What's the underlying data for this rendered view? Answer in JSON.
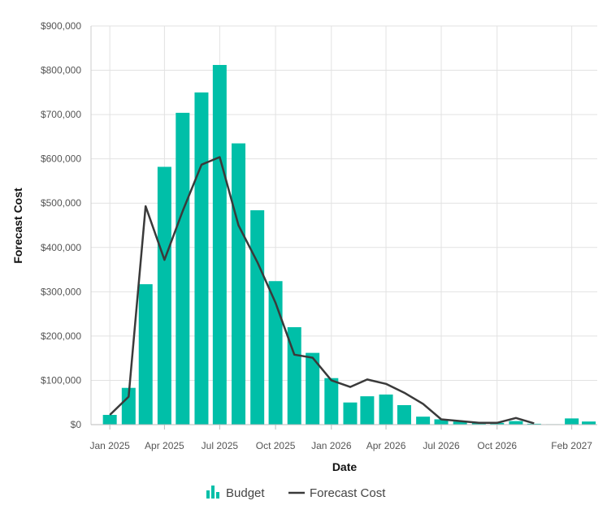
{
  "chart_data": {
    "type": "bar+line",
    "xlabel": "Date",
    "ylabel": "Forecast Cost",
    "ylim": [
      0,
      900000
    ],
    "y_ticks": [
      0,
      100000,
      200000,
      300000,
      400000,
      500000,
      600000,
      700000,
      800000,
      900000
    ],
    "y_tick_labels": [
      "$0",
      "$100,000",
      "$200,000",
      "$300,000",
      "$400,000",
      "$500,000",
      "$600,000",
      "$700,000",
      "$800,000",
      "$900,000"
    ],
    "x_ticks": [
      "2025-01-01",
      "2025-04-01",
      "2025-07-01",
      "2025-10-01",
      "2026-01-01",
      "2026-04-01",
      "2026-07-01",
      "2026-10-01",
      "2027-02-01"
    ],
    "x_tick_labels": [
      "Jan 2025",
      "Apr 2025",
      "Jul 2025",
      "Oct 2025",
      "Jan 2026",
      "Apr 2026",
      "Jul 2026",
      "Oct 2026",
      "Feb 2027"
    ],
    "xlim": [
      "2024-12-01",
      "2027-03-15"
    ],
    "grid": true,
    "legend_position": "bottom",
    "colors": {
      "budget": "#00bfa8",
      "forecast": "#3a3a3a"
    },
    "series": [
      {
        "name": "Budget",
        "type": "bar",
        "x": [
          "2025-01-01",
          "2025-02-01",
          "2025-03-01",
          "2025-04-01",
          "2025-05-01",
          "2025-06-01",
          "2025-07-01",
          "2025-08-01",
          "2025-09-01",
          "2025-10-01",
          "2025-11-01",
          "2025-12-01",
          "2026-01-01",
          "2026-02-01",
          "2026-03-01",
          "2026-04-01",
          "2026-05-01",
          "2026-06-01",
          "2026-07-01",
          "2026-08-01",
          "2026-09-01",
          "2026-10-01",
          "2026-11-01",
          "2026-12-01",
          "2027-01-01",
          "2027-02-01",
          "2027-03-01"
        ],
        "values": [
          22000,
          83000,
          317000,
          582000,
          704000,
          750000,
          812000,
          635000,
          484000,
          324000,
          220000,
          162000,
          105000,
          50000,
          64000,
          68000,
          44000,
          18000,
          12000,
          7000,
          5000,
          4000,
          8000,
          2000,
          1000,
          14000,
          7000
        ]
      },
      {
        "name": "Forecast Cost",
        "type": "line",
        "x": [
          "2025-01-01",
          "2025-02-01",
          "2025-03-01",
          "2025-04-01",
          "2025-05-01",
          "2025-06-01",
          "2025-07-01",
          "2025-08-01",
          "2025-09-01",
          "2025-10-01",
          "2025-11-01",
          "2025-12-01",
          "2026-01-01",
          "2026-02-01",
          "2026-03-01",
          "2026-04-01",
          "2026-05-01",
          "2026-06-01",
          "2026-07-01",
          "2026-08-01",
          "2026-09-01",
          "2026-10-01",
          "2026-11-01",
          "2026-12-01"
        ],
        "values": [
          22000,
          63000,
          493000,
          372000,
          482000,
          587000,
          604000,
          450000,
          367000,
          275000,
          158000,
          151000,
          100000,
          85000,
          102000,
          92000,
          72000,
          47000,
          12000,
          8000,
          4000,
          4000,
          15000,
          3000
        ]
      }
    ]
  }
}
